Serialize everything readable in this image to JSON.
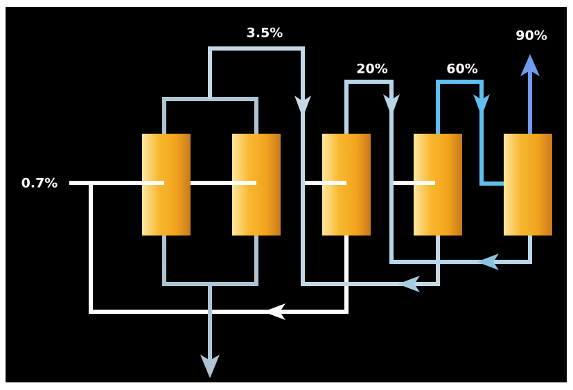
{
  "streams": [
    {
      "label": "0.7%"
    },
    {
      "label": "3.5%"
    },
    {
      "label": "20%"
    },
    {
      "label": "60%"
    },
    {
      "label": "90%"
    }
  ]
}
